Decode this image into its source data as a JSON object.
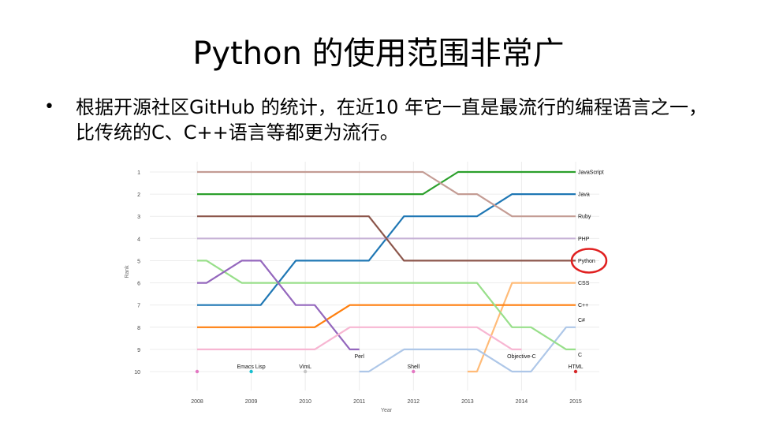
{
  "slide": {
    "title": "Python 的使用范围非常广",
    "bullet": "根据开源社区GitHub 的统计，在近10 年它一直是最流行的编程语言之一，比传统的C、C++语言等都更为流行。"
  },
  "chart_data": {
    "type": "line",
    "title": "",
    "xlabel": "Year",
    "ylabel": "Rank",
    "x": [
      2008,
      2009,
      2010,
      2011,
      2012,
      2013,
      2014,
      2015
    ],
    "xlim": [
      2008,
      2015
    ],
    "ylim": [
      1,
      10
    ],
    "y_ticks": [
      1,
      2,
      3,
      4,
      5,
      6,
      7,
      8,
      9,
      10
    ],
    "y_inverted": true,
    "grid": true,
    "highlight": {
      "series": "Python",
      "color": "#e02020"
    },
    "series": [
      {
        "name": "JavaScript",
        "color": "#2ca02c",
        "values": [
          2,
          2,
          2,
          2,
          2,
          1,
          1,
          1
        ]
      },
      {
        "name": "Java",
        "color": "#1f77b4",
        "values": [
          7,
          7,
          5,
          5,
          3,
          3,
          2,
          2
        ]
      },
      {
        "name": "Ruby",
        "color": "#c49c94",
        "values": [
          1,
          1,
          1,
          1,
          1,
          2,
          3,
          3
        ]
      },
      {
        "name": "PHP",
        "color": "#c5b0d5",
        "values": [
          4,
          4,
          4,
          4,
          4,
          4,
          4,
          4
        ]
      },
      {
        "name": "Python",
        "color": "#8c564b",
        "values": [
          3,
          3,
          3,
          3,
          5,
          5,
          5,
          5
        ]
      },
      {
        "name": "CSS",
        "color": "#ffbb78",
        "values": [
          null,
          null,
          null,
          null,
          null,
          10,
          6,
          6
        ]
      },
      {
        "name": "C++",
        "color": "#ff7f0e",
        "values": [
          8,
          8,
          8,
          7,
          7,
          7,
          7,
          7
        ]
      },
      {
        "name": "C#",
        "color": "#aec7e8",
        "values": [
          null,
          null,
          null,
          10,
          9,
          9,
          10,
          8
        ]
      },
      {
        "name": "C",
        "color": "#98df8a",
        "values": [
          5,
          6,
          6,
          6,
          6,
          6,
          8,
          9
        ]
      },
      {
        "name": "Perl",
        "color": "#9467bd",
        "values": [
          6,
          5,
          7,
          9,
          null,
          null,
          null,
          null
        ]
      },
      {
        "name": "Objective-C",
        "color": "#f7b6d2",
        "values": [
          9,
          9,
          9,
          8,
          8,
          8,
          9,
          null
        ]
      }
    ],
    "point_markers": [
      {
        "x": 2008,
        "y": 10,
        "color": "#e377c2",
        "label": ""
      },
      {
        "x": 2009,
        "y": 10,
        "color": "#17becf",
        "label": "Emacs Lisp"
      },
      {
        "x": 2010,
        "y": 10,
        "color": "#c7c7c7",
        "label": "VimL"
      },
      {
        "x": 2012,
        "y": 10,
        "color": "#e377c2",
        "label": "Shell"
      },
      {
        "x": 2015,
        "y": 10,
        "color": "#d62728",
        "label": "HTML"
      }
    ],
    "annotations": [
      {
        "text": "Perl",
        "x": 2011,
        "y": 9
      },
      {
        "text": "Objective-C",
        "x": 2014,
        "y": 9
      }
    ],
    "end_labels": [
      {
        "text": "JavaScript",
        "y": 1
      },
      {
        "text": "Java",
        "y": 2
      },
      {
        "text": "Ruby",
        "y": 3
      },
      {
        "text": "PHP",
        "y": 4
      },
      {
        "text": "Python",
        "y": 5
      },
      {
        "text": "CSS",
        "y": 6
      },
      {
        "text": "C++",
        "y": 7
      },
      {
        "text": "C#",
        "y": 8
      },
      {
        "text": "C",
        "y": 9
      }
    ]
  }
}
